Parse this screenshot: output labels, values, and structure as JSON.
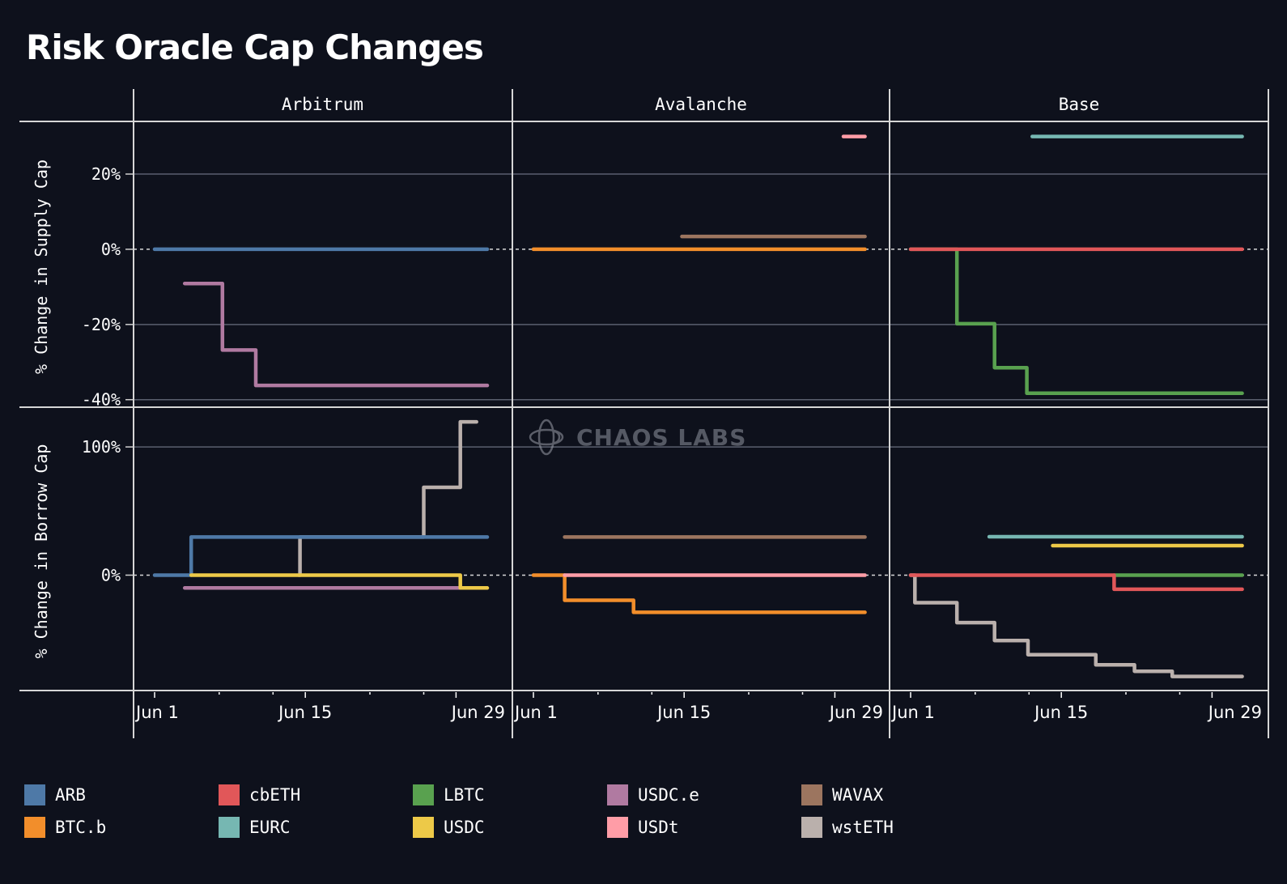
{
  "title": "Risk Oracle Cap Changes",
  "watermark": "CHAOS LABS",
  "chart_data": {
    "type": "line",
    "step": "after",
    "title": "Risk Oracle Cap Changes",
    "facet_columns": [
      "Arbitrum",
      "Avalanche",
      "Base"
    ],
    "facet_rows": [
      {
        "key": "supply",
        "ylabel": "% Change in Supply Cap",
        "ylim": [
          -42,
          34
        ],
        "yticks": [
          20,
          0,
          -20,
          -40
        ],
        "ytick_labels": [
          "20%",
          "0%",
          "-20%",
          "-40%"
        ]
      },
      {
        "key": "borrow",
        "ylabel": "% Change in Borrow Cap",
        "ylim": [
          -90,
          131
        ],
        "yticks": [
          100,
          0
        ],
        "ytick_labels": [
          "100%",
          "0%"
        ]
      }
    ],
    "x_unit": "day of June",
    "xlim": [
      -0.9,
      33.0
    ],
    "xticks": [
      1,
      15,
      29
    ],
    "xtick_labels": [
      "Jun 1",
      "Jun 15",
      "Jun 29"
    ],
    "minor_xticks": [
      8,
      22,
      13,
      27
    ],
    "reference_line": 0,
    "grid": true,
    "legend_position": "bottom",
    "colors": {
      "ARB": "#4e79a7",
      "BTC.b": "#f28e2b",
      "cbETH": "#e15759",
      "EURC": "#76b7b2",
      "LBTC": "#59a14f",
      "USDC": "#edc948",
      "USDC.e": "#b07aa1",
      "USDt": "#ff9da7",
      "WAVAX": "#9c755f",
      "wstETH": "#bab0ac"
    },
    "legend": [
      "ARB",
      "BTC.b",
      "cbETH",
      "EURC",
      "LBTC",
      "USDC",
      "USDC.e",
      "USDt",
      "WAVAX",
      "wstETH"
    ],
    "series": [
      {
        "panel": "Arbitrum",
        "metric": "supply",
        "name": "ARB",
        "x": [
          1,
          31.9
        ],
        "y": [
          0,
          0
        ]
      },
      {
        "panel": "Arbitrum",
        "metric": "supply",
        "name": "USDC.e",
        "x": [
          3.8,
          7.3,
          10.4,
          31.9
        ],
        "y": [
          -9.1,
          -26.8,
          -36.2,
          -36.2
        ]
      },
      {
        "panel": "Arbitrum",
        "metric": "borrow",
        "name": "USDC.e",
        "x": [
          3.8,
          29.4
        ],
        "y": [
          -10,
          -10
        ]
      },
      {
        "panel": "Arbitrum",
        "metric": "borrow",
        "name": "wstETH",
        "x": [
          14.4,
          14.5,
          26.0,
          29.4,
          30.9
        ],
        "y": [
          0,
          29.7,
          68.5,
          119.6,
          119.6
        ]
      },
      {
        "panel": "Arbitrum",
        "metric": "borrow",
        "name": "ARB",
        "x": [
          1,
          4.4,
          31.9
        ],
        "y": [
          0,
          29.7,
          29.7
        ]
      },
      {
        "panel": "Arbitrum",
        "metric": "borrow",
        "name": "USDC",
        "x": [
          4.4,
          29.4,
          31.9
        ],
        "y": [
          0,
          -10,
          -10
        ]
      },
      {
        "panel": "Avalanche",
        "metric": "supply",
        "name": "USDt",
        "x": [
          29.8,
          31.8
        ],
        "y": [
          30,
          30
        ]
      },
      {
        "panel": "Avalanche",
        "metric": "supply",
        "name": "WAVAX",
        "x": [
          14.8,
          31.8
        ],
        "y": [
          3.4,
          3.4
        ]
      },
      {
        "panel": "Avalanche",
        "metric": "supply",
        "name": "BTC.b",
        "x": [
          1,
          31.8
        ],
        "y": [
          0,
          0
        ]
      },
      {
        "panel": "Avalanche",
        "metric": "borrow",
        "name": "WAVAX",
        "x": [
          3.9,
          31.8
        ],
        "y": [
          29.7,
          29.7
        ]
      },
      {
        "panel": "Avalanche",
        "metric": "borrow",
        "name": "BTC.b",
        "x": [
          1,
          3.9,
          10.3,
          31.8
        ],
        "y": [
          0,
          -19.6,
          -29,
          -29
        ]
      },
      {
        "panel": "Avalanche",
        "metric": "borrow",
        "name": "USDt",
        "x": [
          3.9,
          31.8
        ],
        "y": [
          0,
          0
        ]
      },
      {
        "panel": "Base",
        "metric": "supply",
        "name": "EURC",
        "x": [
          12.3,
          31.8
        ],
        "y": [
          30,
          30
        ]
      },
      {
        "panel": "Base",
        "metric": "supply",
        "name": "LBTC",
        "x": [
          1,
          5.3,
          8.8,
          11.8,
          31.8
        ],
        "y": [
          0,
          -19.8,
          -31.5,
          -38.3,
          -38.3
        ]
      },
      {
        "panel": "Base",
        "metric": "supply",
        "name": "cbETH",
        "x": [
          1,
          31.8
        ],
        "y": [
          0,
          0
        ]
      },
      {
        "panel": "Base",
        "metric": "borrow",
        "name": "wstETH",
        "x": [
          1,
          1.4,
          5.3,
          8.8,
          11.9,
          18.2,
          21.8,
          25.3,
          31.8
        ],
        "y": [
          0,
          -21.5,
          -37,
          -51,
          -62,
          -70,
          -75,
          -79,
          -79
        ]
      },
      {
        "panel": "Base",
        "metric": "borrow",
        "name": "EURC",
        "x": [
          8.3,
          31.8
        ],
        "y": [
          30,
          30
        ]
      },
      {
        "panel": "Base",
        "metric": "borrow",
        "name": "USDC",
        "x": [
          14.2,
          31.8
        ],
        "y": [
          23,
          23
        ]
      },
      {
        "panel": "Base",
        "metric": "borrow",
        "name": "LBTC",
        "x": [
          19.9,
          31.8
        ],
        "y": [
          0,
          0
        ]
      },
      {
        "panel": "Base",
        "metric": "borrow",
        "name": "cbETH",
        "x": [
          1,
          19.9,
          31.8
        ],
        "y": [
          0,
          -11,
          -11
        ]
      }
    ]
  }
}
